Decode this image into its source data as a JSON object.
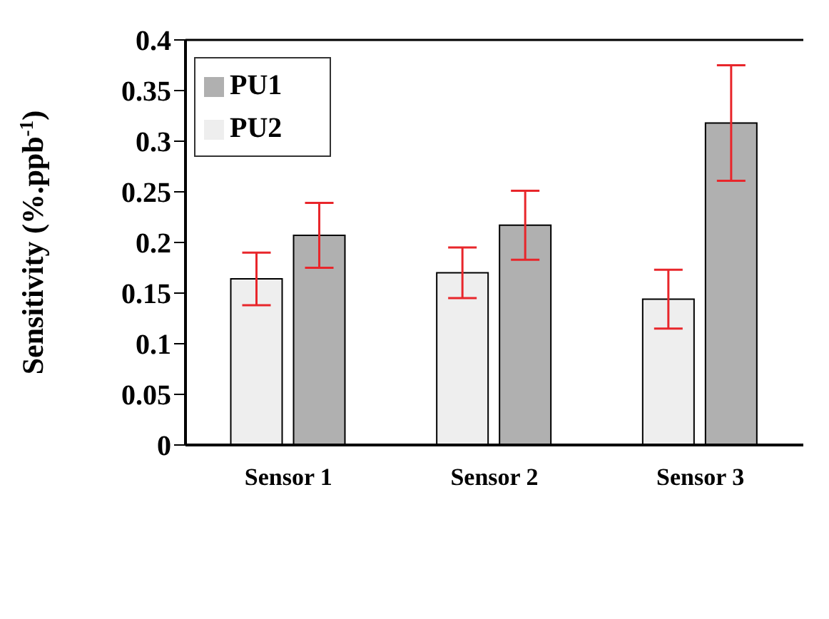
{
  "chart_data": {
    "type": "bar",
    "ylabel": "Sensitivity (%.ppb$^{-1}$)",
    "categories": [
      "Sensor 1",
      "Sensor 2",
      "Sensor 3"
    ],
    "series": [
      {
        "name": "PU2",
        "color": "#eeeeee",
        "values": [
          0.164,
          0.17,
          0.144
        ],
        "errors": [
          0.026,
          0.025,
          0.029
        ]
      },
      {
        "name": "PU1",
        "color": "#b0b0b0",
        "values": [
          0.207,
          0.217,
          0.318
        ],
        "errors": [
          0.032,
          0.034,
          0.057
        ]
      }
    ],
    "ylim": [
      0,
      0.4
    ],
    "yticks": [
      0,
      0.05,
      0.1,
      0.15,
      0.2,
      0.25,
      0.3,
      0.35,
      0.4
    ],
    "grid": false,
    "legend": "top left"
  }
}
